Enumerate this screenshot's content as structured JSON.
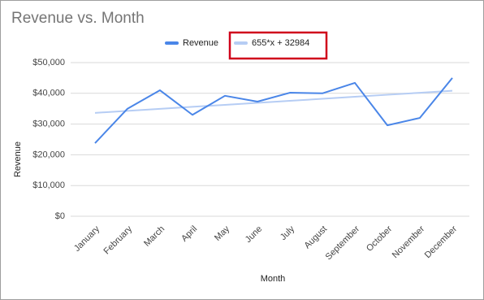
{
  "chart_data": {
    "type": "line",
    "title": "Revenue vs. Month",
    "x_label": "Month",
    "y_label": "Revenue",
    "categories": [
      "January",
      "February",
      "March",
      "April",
      "May",
      "June",
      "July",
      "August",
      "September",
      "October",
      "November",
      "December"
    ],
    "series": [
      {
        "name": "Revenue",
        "color": "#4a86e8",
        "values": [
          23800,
          35000,
          41000,
          33000,
          39200,
          37300,
          40200,
          40000,
          43400,
          29600,
          32000,
          45000
        ]
      },
      {
        "name": "655*x + 32984",
        "color": "#b6cdf4",
        "values": [
          33639,
          34294,
          34949,
          35604,
          36259,
          36914,
          37569,
          38224,
          38879,
          39534,
          40189,
          40844
        ]
      }
    ],
    "ylim": [
      0,
      50000
    ],
    "yticks": [
      {
        "value": 0,
        "label": "$0"
      },
      {
        "value": 10000,
        "label": "$10,000"
      },
      {
        "value": 20000,
        "label": "$20,000"
      },
      {
        "value": 30000,
        "label": "$30,000"
      },
      {
        "value": 40000,
        "label": "$40,000"
      },
      {
        "value": 50000,
        "label": "$50,000"
      }
    ],
    "grid": true
  }
}
